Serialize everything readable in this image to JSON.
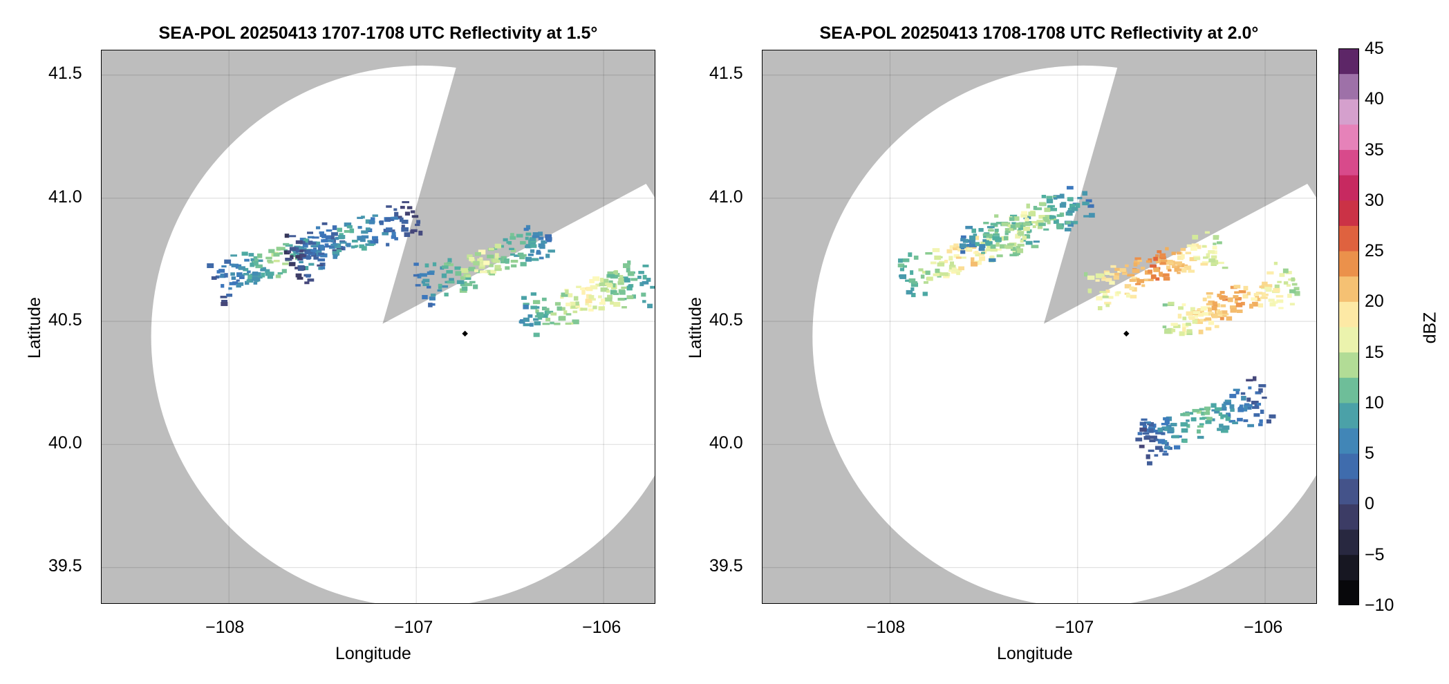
{
  "figure": {
    "panels": [
      {
        "title": "SEA-POL 20250413 1707-1708 UTC Reflectivity at 1.5°",
        "xlabel": "Longitude",
        "ylabel": "Latitude"
      },
      {
        "title": "SEA-POL 20250413 1708-1708 UTC Reflectivity at 2.0°",
        "xlabel": "Longitude",
        "ylabel": "Latitude"
      }
    ],
    "colorbar": {
      "label": "dBZ",
      "ticks": [
        "45",
        "40",
        "35",
        "30",
        "25",
        "20",
        "15",
        "10",
        "5",
        "0",
        "−5",
        "−10"
      ]
    },
    "x_ticks": [
      "−108",
      "−107",
      "−106"
    ],
    "y_ticks": [
      "41.5",
      "41.0",
      "40.5",
      "40.0",
      "39.5"
    ]
  },
  "chart_data": [
    {
      "type": "heatmap",
      "title": "SEA-POL 20250413 1707-1708 UTC Reflectivity at 1.5°",
      "xlabel": "Longitude",
      "ylabel": "Latitude",
      "xlim": [
        -108.68,
        -105.72
      ],
      "ylim": [
        39.35,
        41.6
      ],
      "x_ticks": [
        -108,
        -107,
        -106
      ],
      "y_ticks": [
        39.5,
        40.0,
        40.5,
        41.0,
        41.5
      ],
      "grid": true,
      "background_color": "#bdbdbd",
      "coverage_color": "#ffffff",
      "radar_center": [
        -106.74,
        40.45
      ],
      "blocked_sectors_deg": [
        [
          16,
          62
        ]
      ],
      "echo_regions": [
        {
          "lon": -107.75,
          "lat": 40.75,
          "max_dbz": 15
        },
        {
          "lon": -107.35,
          "lat": 40.85,
          "max_dbz": 12
        },
        {
          "lon": -106.65,
          "lat": 40.74,
          "max_dbz": 18
        },
        {
          "lon": -106.1,
          "lat": 40.6,
          "max_dbz": 20
        }
      ]
    },
    {
      "type": "heatmap",
      "title": "SEA-POL 20250413 1708-1708 UTC Reflectivity at 2.0°",
      "xlabel": "Longitude",
      "ylabel": "Latitude",
      "xlim": [
        -108.68,
        -105.72
      ],
      "ylim": [
        39.35,
        41.6
      ],
      "x_ticks": [
        -108,
        -107,
        -106
      ],
      "y_ticks": [
        39.5,
        40.0,
        40.5,
        41.0,
        41.5
      ],
      "grid": true,
      "background_color": "#bdbdbd",
      "coverage_color": "#ffffff",
      "radar_center": [
        -106.74,
        40.45
      ],
      "blocked_sectors_deg": [
        [
          16,
          62
        ]
      ],
      "echo_regions": [
        {
          "lon": -107.6,
          "lat": 40.78,
          "max_dbz": 22
        },
        {
          "lon": -107.3,
          "lat": 40.9,
          "max_dbz": 18
        },
        {
          "lon": -106.6,
          "lat": 40.72,
          "max_dbz": 27
        },
        {
          "lon": -106.2,
          "lat": 40.58,
          "max_dbz": 26
        },
        {
          "lon": -106.35,
          "lat": 40.1,
          "max_dbz": 14
        }
      ]
    }
  ],
  "colorbar_data": {
    "min": -10,
    "max": 45,
    "step": 2.5,
    "unit": "dBZ"
  }
}
